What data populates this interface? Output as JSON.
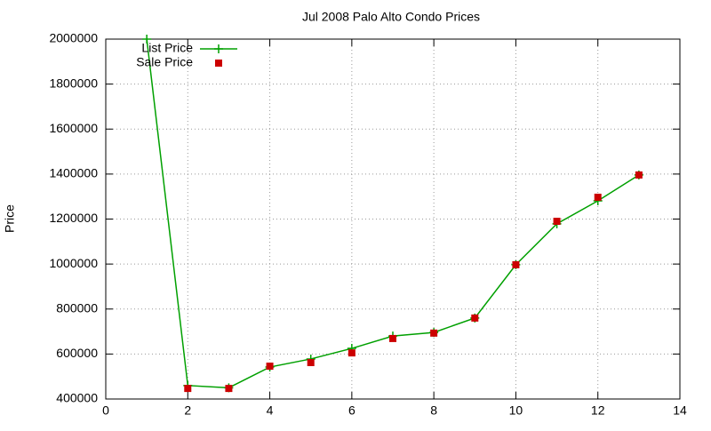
{
  "chart_data": {
    "type": "line",
    "title": "Jul 2008 Palo Alto Condo Prices",
    "y_label": "Price",
    "x": [
      1,
      2,
      3,
      4,
      5,
      6,
      7,
      8,
      9,
      10,
      11,
      12,
      13
    ],
    "series": [
      {
        "name": "List Price",
        "color": "#00a000",
        "style": "linespoints",
        "marker": "plus",
        "values": [
          2000000,
          460000,
          450000,
          542000,
          578000,
          625000,
          680000,
          696000,
          760000,
          997000,
          1179000,
          1281000,
          1396000
        ]
      },
      {
        "name": "Sale Price",
        "color": "#cc0000",
        "style": "points",
        "marker": "square",
        "values": [
          null,
          447000,
          447000,
          546000,
          562000,
          605000,
          669000,
          693000,
          760000,
          997000,
          1190000,
          1297000,
          1396000
        ]
      }
    ],
    "xlim": [
      0,
      14
    ],
    "xticks": [
      0,
      2,
      4,
      6,
      8,
      10,
      12,
      14
    ],
    "ylim": [
      400000,
      2000000
    ],
    "yticks": [
      400000,
      600000,
      800000,
      1000000,
      1200000,
      1400000,
      1600000,
      1800000,
      2000000
    ],
    "grid": true,
    "legend": "top-left"
  }
}
